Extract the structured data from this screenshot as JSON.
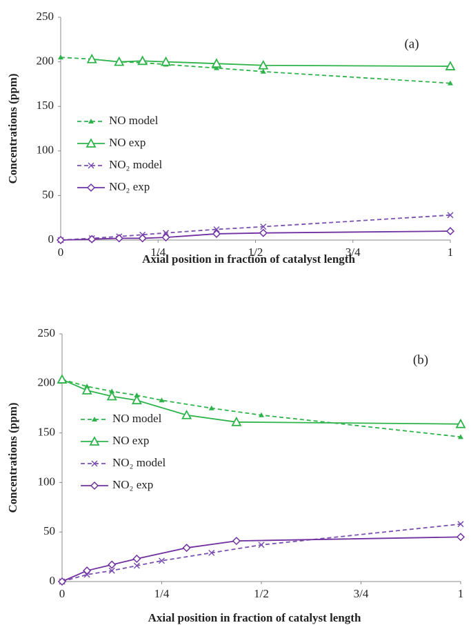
{
  "chart_data": [
    {
      "type": "line",
      "annotation": "(a)",
      "xlabel": "Axial position in fraction of catalyst length",
      "ylabel": "Concentrations (ppm)",
      "xlim": [
        0,
        1
      ],
      "ylim": [
        0,
        250
      ],
      "xticks": [
        0,
        {
          "value": 0.25,
          "label": "1/4"
        },
        {
          "value": 0.5,
          "label": "1/2"
        },
        {
          "value": 0.75,
          "label": "3/4"
        },
        1
      ],
      "yticks": [
        0,
        50,
        100,
        150,
        200,
        250
      ],
      "series": [
        {
          "name": "NO model",
          "color": "#2db34a",
          "dashed": true,
          "marker": "triangle-filled",
          "x": [
            0,
            0.08,
            0.15,
            0.21,
            0.27,
            0.4,
            0.52,
            1
          ],
          "values": [
            205,
            203,
            200,
            199,
            197,
            193,
            189,
            176
          ]
        },
        {
          "name": "NO exp",
          "color": "#2db34a",
          "dashed": false,
          "marker": "triangle-open",
          "x": [
            0.08,
            0.15,
            0.21,
            0.27,
            0.4,
            0.52,
            1
          ],
          "values": [
            203,
            200,
            201,
            200,
            198,
            196,
            195
          ]
        },
        {
          "name": "NO₂ model",
          "color": "#7a4fb0",
          "dashed": true,
          "marker": "cross",
          "x": [
            0,
            0.08,
            0.15,
            0.21,
            0.27,
            0.4,
            0.52,
            1
          ],
          "values": [
            0,
            2,
            4,
            6,
            8,
            12,
            15,
            28
          ]
        },
        {
          "name": "NO₂ exp",
          "color": "#7030a0",
          "dashed": false,
          "marker": "diamond-open",
          "x": [
            0,
            0.08,
            0.15,
            0.21,
            0.27,
            0.4,
            0.52,
            1
          ],
          "values": [
            0,
            1,
            2,
            2,
            3,
            7,
            8,
            10
          ]
        }
      ]
    },
    {
      "type": "line",
      "annotation": "(b)",
      "xlabel": "Axial position in fraction of catalyst length",
      "ylabel": "Concentrations (ppm)",
      "xlim": [
        0,
        1
      ],
      "ylim": [
        0,
        250
      ],
      "xticks": [
        0,
        {
          "value": 0.25,
          "label": "1/4"
        },
        {
          "value": 0.5,
          "label": "1/2"
        },
        {
          "value": 0.75,
          "label": "3/4"
        },
        1
      ],
      "yticks": [
        0,
        50,
        100,
        150,
        200,
        250
      ],
      "series": [
        {
          "name": "NO model",
          "color": "#2db34a",
          "dashed": true,
          "marker": "triangle-filled",
          "x": [
            0,
            0.0625,
            0.125,
            0.1875,
            0.25,
            0.375,
            0.5,
            1
          ],
          "values": [
            204,
            197,
            192,
            188,
            183,
            175,
            168,
            146
          ]
        },
        {
          "name": "NO exp",
          "color": "#2db34a",
          "dashed": false,
          "marker": "triangle-open",
          "x": [
            0,
            0.0625,
            0.125,
            0.1875,
            0.3125,
            0.4375,
            1
          ],
          "values": [
            204,
            193,
            187,
            183,
            168,
            161,
            159
          ]
        },
        {
          "name": "NO₂ model",
          "color": "#7a4fb0",
          "dashed": true,
          "marker": "cross",
          "x": [
            0,
            0.0625,
            0.125,
            0.1875,
            0.25,
            0.375,
            0.5,
            1
          ],
          "values": [
            0,
            7,
            11,
            16,
            21,
            29,
            37,
            58
          ]
        },
        {
          "name": "NO₂ exp",
          "color": "#7030a0",
          "dashed": false,
          "marker": "diamond-open",
          "x": [
            0,
            0.0625,
            0.125,
            0.1875,
            0.3125,
            0.4375,
            1
          ],
          "values": [
            0,
            11,
            17,
            23,
            34,
            41,
            45
          ]
        }
      ]
    }
  ]
}
